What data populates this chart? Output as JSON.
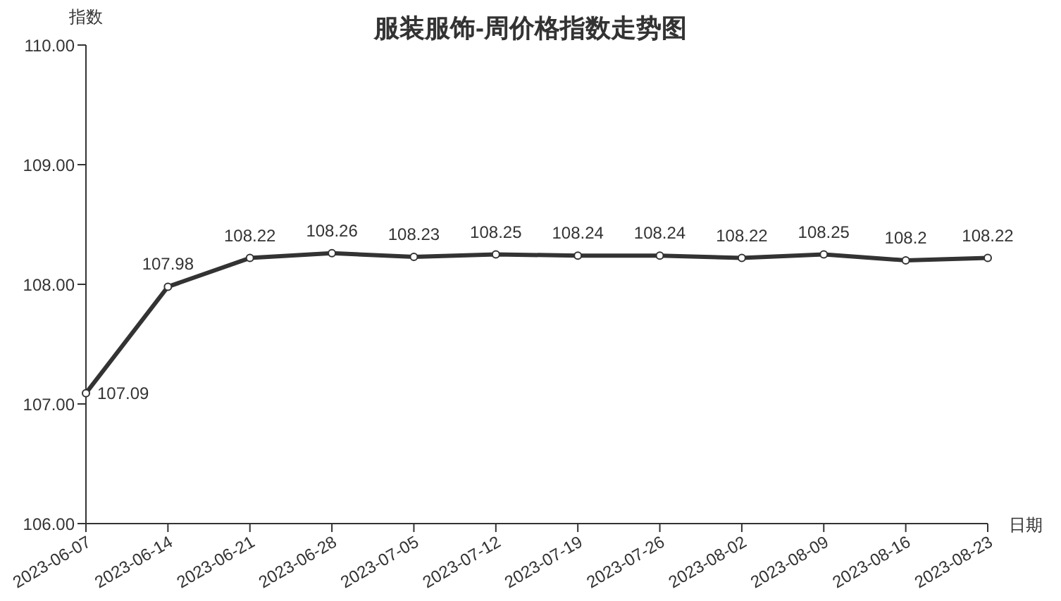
{
  "chart_data": {
    "type": "line",
    "title": "服装服饰-周价格指数走势图",
    "xlabel": "日期",
    "ylabel": "指数",
    "categories": [
      "2023-06-07",
      "2023-06-14",
      "2023-06-21",
      "2023-06-28",
      "2023-07-05",
      "2023-07-12",
      "2023-07-19",
      "2023-07-26",
      "2023-08-02",
      "2023-08-09",
      "2023-08-16",
      "2023-08-23"
    ],
    "series": [
      {
        "color": "#333333",
        "values": [
          107.09,
          107.98,
          108.22,
          108.26,
          108.23,
          108.25,
          108.24,
          108.24,
          108.22,
          108.25,
          108.2,
          108.22
        ]
      }
    ],
    "ylim": [
      106,
      110
    ],
    "yticks": [
      {
        "value": 106,
        "label": "106.00"
      },
      {
        "value": 107,
        "label": "107.00"
      },
      {
        "value": 108,
        "label": "108.00"
      },
      {
        "value": 109,
        "label": "109.00"
      },
      {
        "value": 110,
        "label": "110.00"
      }
    ],
    "data_labels": true,
    "marker": "circle",
    "line_style": "solid"
  }
}
